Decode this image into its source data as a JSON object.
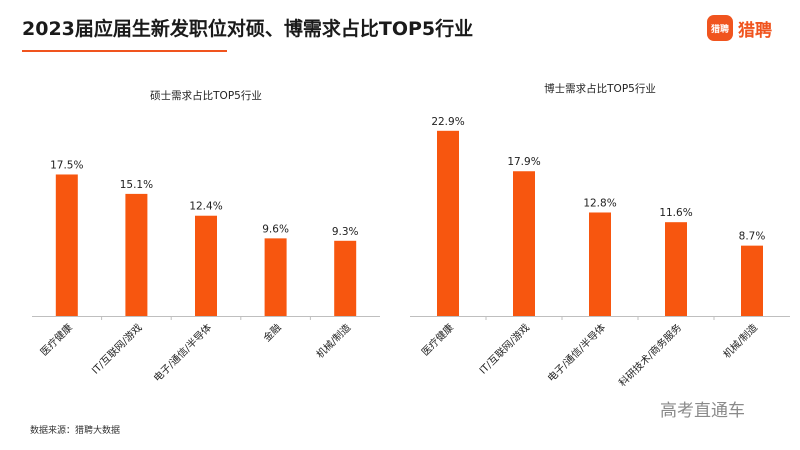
{
  "header": {
    "title": "2023届应届生新发职位对硕、博需求占比TOP5行业",
    "logo_badge": "猎聘",
    "logo_text": "猎聘"
  },
  "footer": {
    "source": "数据来源：猎聘大数据",
    "watermark": "高考直通车"
  },
  "colors": {
    "bar": "#f7560f",
    "accent": "#f0541e",
    "axis": "#bfbfbf"
  },
  "chart_data": [
    {
      "type": "bar",
      "title": "硕士需求占比TOP5行业",
      "categories": [
        "医疗健康",
        "IT/互联网/游戏",
        "电子/通信/半导体",
        "金融",
        "机械/制造"
      ],
      "values": [
        17.5,
        15.1,
        12.4,
        9.6,
        9.3
      ],
      "value_labels": [
        "17.5%",
        "15.1%",
        "12.4%",
        "9.6%",
        "9.3%"
      ],
      "unit": "%",
      "xlabel": "",
      "ylabel": "",
      "ylim": [
        0,
        23
      ]
    },
    {
      "type": "bar",
      "title": "博士需求占比TOP5行业",
      "categories": [
        "医疗健康",
        "IT/互联网/游戏",
        "电子/通信/半导体",
        "科研技术/商务服务",
        "机械/制造"
      ],
      "values": [
        22.9,
        17.9,
        12.8,
        11.6,
        8.7
      ],
      "value_labels": [
        "22.9%",
        "17.9%",
        "12.8%",
        "11.6%",
        "8.7%"
      ],
      "unit": "%",
      "xlabel": "",
      "ylabel": "",
      "ylim": [
        0,
        23
      ]
    }
  ]
}
